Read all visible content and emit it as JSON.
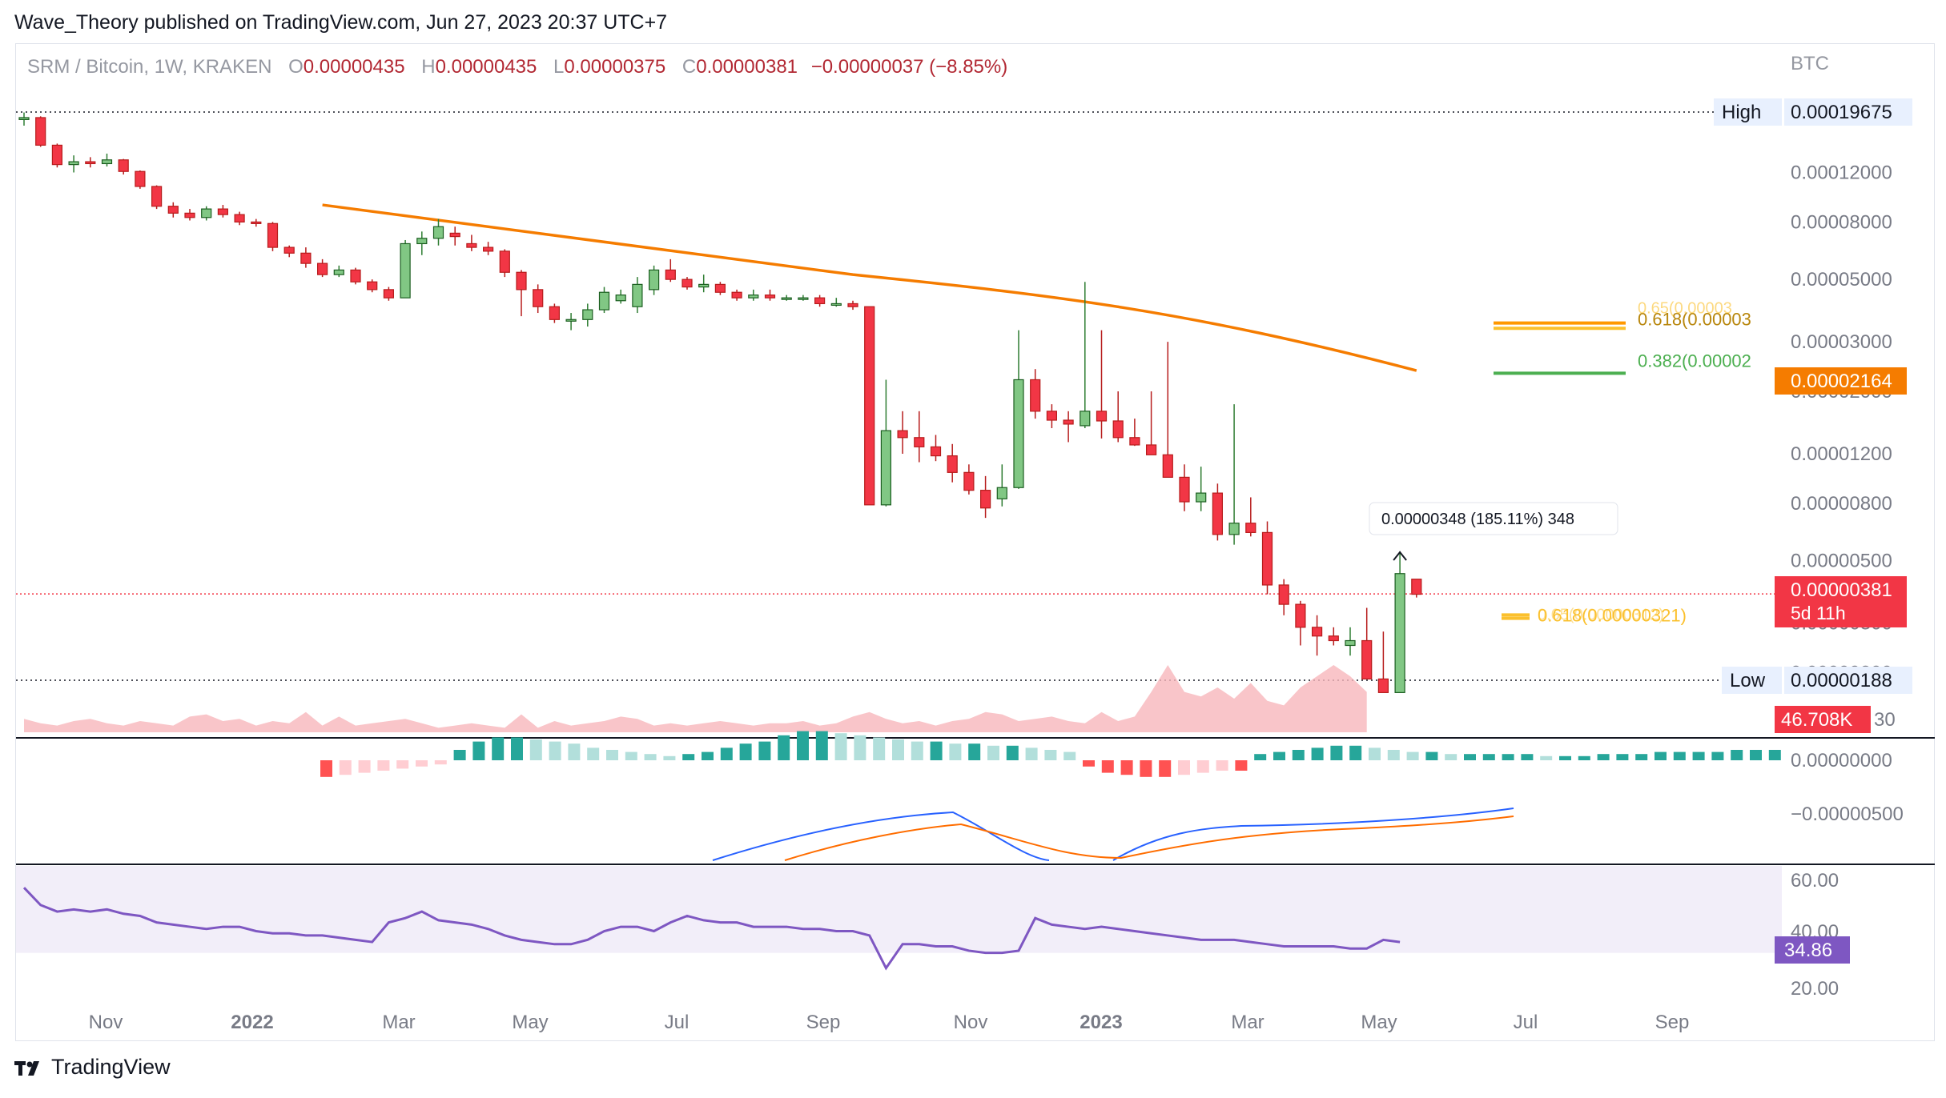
{
  "publisher": "Wave_Theory published on TradingView.com, Jun 27, 2023 20:37 UTC+7",
  "legend": {
    "symbol": "SRM / Bitcoin, 1W, KRAKEN",
    "open_label": "O",
    "open": "0.00000435",
    "high_label": "H",
    "high": "0.00000435",
    "low_label": "L",
    "low": "0.00000375",
    "close_label": "C",
    "close": "0.00000381",
    "change": "−0.00000037 (−8.85%)"
  },
  "currency": "BTC",
  "brand": "TradingView",
  "colors": {
    "up": "#4caf50",
    "up_fill": "#81c784",
    "down": "#f23645",
    "down_fill": "#f23645",
    "ema": "#f57c00",
    "fib_382": "#4caf50",
    "fib_618": "#fbc02d",
    "fib_65": "#ff9800",
    "macd_line": "#2962ff",
    "signal_line": "#ff6d00",
    "hist_up_strong": "#26a69a",
    "hist_up_weak": "#b2dfdb",
    "hist_down_strong": "#ff5252",
    "hist_down_weak": "#ffcdd2",
    "rsi": "#7e57c2",
    "rsi_band": "#ede7f6",
    "volume_up": "#b8dbbc",
    "volume_down": "#f7b7bb"
  },
  "price_axis": {
    "ticks": [
      "0.00012000",
      "0.00008000",
      "0.00005000",
      "0.00003000",
      "0.00002000",
      "0.00001200",
      "0.00000800",
      "0.00000500",
      "0.00000300",
      "0.00000200"
    ],
    "high_label": "High",
    "high_value": "0.00019675",
    "low_label": "Low",
    "low_value": "0.00000188",
    "ema_value": "0.00002164",
    "last_price": "0.00000381",
    "countdown": "5d 11h",
    "volume_value": "46.708K",
    "volume_tick": "30"
  },
  "macd_axis": {
    "ticks": [
      "0.00000000",
      "−0.00000500"
    ]
  },
  "rsi_axis": {
    "ticks": [
      "60.00",
      "40.00",
      "20.00"
    ],
    "value": "34.86"
  },
  "time_axis": {
    "labels": [
      {
        "text": "Nov",
        "bold": false
      },
      {
        "text": "2022",
        "bold": true
      },
      {
        "text": "Mar",
        "bold": false
      },
      {
        "text": "May",
        "bold": false
      },
      {
        "text": "Jul",
        "bold": false
      },
      {
        "text": "Sep",
        "bold": false
      },
      {
        "text": "Nov",
        "bold": false
      },
      {
        "text": "2023",
        "bold": true
      },
      {
        "text": "Mar",
        "bold": false
      },
      {
        "text": "May",
        "bold": false
      },
      {
        "text": "Jul",
        "bold": false
      },
      {
        "text": "Sep",
        "bold": false
      }
    ]
  },
  "annotations": {
    "measure": "0.00000348 (185.11%) 348",
    "fib_382": "0.382(0.00002",
    "fib_618": "0.618(0.00003",
    "fib_65": "0.65(0.00003",
    "fib_low": "0.618(0.00000321)",
    "fib_low2": "0.65(0.00000312)"
  },
  "chart_data": {
    "type": "candlestick",
    "title": "SRM / Bitcoin, 1W, KRAKEN",
    "scale": "log",
    "ylim": [
      1.88e-06,
      0.00019675
    ],
    "xlim": [
      "2021-09-20",
      "2023-10-02"
    ],
    "ohlc": [
      [
        0.000185,
        0.000196,
        0.000176,
        0.000188
      ],
      [
        0.000188,
        0.00019,
        0.000148,
        0.00015
      ],
      [
        0.00015,
        0.000152,
        0.000125,
        0.000128
      ],
      [
        0.000128,
        0.000138,
        0.00012,
        0.000131
      ],
      [
        0.000131,
        0.000136,
        0.000125,
        0.000129
      ],
      [
        0.000129,
        0.00014,
        0.000126,
        0.000133
      ],
      [
        0.000133,
        0.000134,
        0.000118,
        0.000121
      ],
      [
        0.000121,
        0.000122,
        0.000105,
        0.000107
      ],
      [
        0.000107,
        0.000108,
        8.9e-05,
        9.1e-05
      ],
      [
        9.1e-05,
        9.4e-05,
        8.3e-05,
        8.6e-05
      ],
      [
        8.6e-05,
        8.9e-05,
        8.1e-05,
        8.3e-05
      ],
      [
        8.3e-05,
        9.1e-05,
        8.1e-05,
        8.9e-05
      ],
      [
        8.9e-05,
        9.2e-05,
        8.3e-05,
        8.5e-05
      ],
      [
        8.5e-05,
        8.7e-05,
        7.8e-05,
        8e-05
      ],
      [
        8e-05,
        8.2e-05,
        7.7e-05,
        7.9e-05
      ],
      [
        7.9e-05,
        8e-05,
        6.3e-05,
        6.5e-05
      ],
      [
        6.5e-05,
        6.6e-05,
        6e-05,
        6.2e-05
      ],
      [
        6.2e-05,
        6.5e-05,
        5.5e-05,
        5.7e-05
      ],
      [
        5.7e-05,
        5.9e-05,
        5.1e-05,
        5.2e-05
      ],
      [
        5.2e-05,
        5.6e-05,
        5.1e-05,
        5.4e-05
      ],
      [
        5.4e-05,
        5.5e-05,
        4.8e-05,
        4.9e-05
      ],
      [
        4.9e-05,
        5e-05,
        4.5e-05,
        4.6e-05
      ],
      [
        4.6e-05,
        4.7e-05,
        4.2e-05,
        4.3e-05
      ],
      [
        4.3e-05,
        6.9e-05,
        4.3e-05,
        6.7e-05
      ],
      [
        6.7e-05,
        7.4e-05,
        6.1e-05,
        7e-05
      ],
      [
        7e-05,
        8.2e-05,
        6.6e-05,
        7.7e-05
      ],
      [
        7.3e-05,
        7.7e-05,
        6.6e-05,
        7.1e-05
      ],
      [
        6.7e-05,
        7.2e-05,
        6.3e-05,
        6.5e-05
      ],
      [
        6.5e-05,
        6.8e-05,
        6.1e-05,
        6.3e-05
      ],
      [
        6.3e-05,
        6.4e-05,
        5.1e-05,
        5.3e-05
      ],
      [
        5.3e-05,
        5.4e-05,
        3.7e-05,
        4.6e-05
      ],
      [
        4.6e-05,
        4.8e-05,
        3.8e-05,
        4e-05
      ],
      [
        4e-05,
        4.1e-05,
        3.5e-05,
        3.6e-05
      ],
      [
        3.6e-05,
        3.8e-05,
        3.3e-05,
        3.6e-05
      ],
      [
        3.6e-05,
        4.1e-05,
        3.4e-05,
        3.9e-05
      ],
      [
        3.9e-05,
        4.7e-05,
        3.8e-05,
        4.5e-05
      ],
      [
        4.2e-05,
        4.6e-05,
        4.1e-05,
        4.4e-05
      ],
      [
        4e-05,
        5.1e-05,
        3.8e-05,
        4.8e-05
      ],
      [
        4.6e-05,
        5.6e-05,
        4.4e-05,
        5.4e-05
      ],
      [
        5.4e-05,
        5.9e-05,
        4.9e-05,
        5e-05
      ],
      [
        5e-05,
        5.1e-05,
        4.6e-05,
        4.7e-05
      ],
      [
        4.7e-05,
        5.2e-05,
        4.5e-05,
        4.8e-05
      ],
      [
        4.8e-05,
        4.9e-05,
        4.4e-05,
        4.5e-05
      ],
      [
        4.5e-05,
        4.6e-05,
        4.2e-05,
        4.3e-05
      ],
      [
        4.3e-05,
        4.6e-05,
        4.2e-05,
        4.4e-05
      ],
      [
        4.4e-05,
        4.6e-05,
        4.2e-05,
        4.3e-05
      ],
      [
        4.3e-05,
        4.4e-05,
        4.2e-05,
        4.3e-05
      ],
      [
        4.3e-05,
        4.4e-05,
        4.2e-05,
        4.3e-05
      ],
      [
        4.3e-05,
        4.4e-05,
        4e-05,
        4.1e-05
      ],
      [
        4.1e-05,
        4.3e-05,
        4e-05,
        4.1e-05
      ],
      [
        4.1e-05,
        4.2e-05,
        3.9e-05,
        4e-05
      ],
      [
        4e-05,
        4e-05,
        7.9e-06,
        7.9e-06
      ],
      [
        7.9e-06,
        2.2e-05,
        7.8e-06,
        1.45e-05
      ],
      [
        1.45e-05,
        1.7e-05,
        1.2e-05,
        1.37e-05
      ],
      [
        1.37e-05,
        1.7e-05,
        1.12e-05,
        1.27e-05
      ],
      [
        1.27e-05,
        1.4e-05,
        1.13e-05,
        1.18e-05
      ],
      [
        1.18e-05,
        1.3e-05,
        9.5e-06,
        1.03e-05
      ],
      [
        1.03e-05,
        1.1e-05,
        8.6e-06,
        8.9e-06
      ],
      [
        8.9e-06,
        1e-05,
        7.1e-06,
        7.7e-06
      ],
      [
        8.3e-06,
        1.1e-05,
        7.8e-06,
        9.1e-06
      ],
      [
        9.1e-06,
        3.3e-05,
        9e-06,
        2.2e-05
      ],
      [
        2.2e-05,
        2.4e-05,
        1.6e-05,
        1.7e-05
      ],
      [
        1.7e-05,
        1.8e-05,
        1.48e-05,
        1.58e-05
      ],
      [
        1.58e-05,
        1.7e-05,
        1.32e-05,
        1.53e-05
      ],
      [
        1.51e-05,
        4.9e-05,
        1.48e-05,
        1.7e-05
      ],
      [
        1.7e-05,
        3.3e-05,
        1.36e-05,
        1.57e-05
      ],
      [
        1.57e-05,
        2e-05,
        1.32e-05,
        1.37e-05
      ],
      [
        1.37e-05,
        1.6e-05,
        1.28e-05,
        1.29e-05
      ],
      [
        1.29e-05,
        2e-05,
        1.2e-05,
        1.19e-05
      ],
      [
        1.19e-05,
        3e-05,
        1.03e-05,
        9.9e-06
      ],
      [
        9.9e-06,
        1.1e-05,
        7.5e-06,
        8.1e-06
      ],
      [
        8.1e-06,
        1.08e-05,
        7.5e-06,
        8.7e-06
      ],
      [
        8.7e-06,
        9.4e-06,
        5.9e-06,
        6.2e-06
      ],
      [
        6.2e-06,
        1.8e-05,
        5.7e-06,
        6.8e-06
      ],
      [
        6.8e-06,
        8.4e-06,
        6.1e-06,
        6.3e-06
      ],
      [
        6.3e-06,
        6.9e-06,
        3.8e-06,
        4.1e-06
      ],
      [
        4.1e-06,
        4.3e-06,
        3.2e-06,
        3.5e-06
      ],
      [
        3.5e-06,
        3.6e-06,
        2.5e-06,
        2.9e-06
      ],
      [
        2.9e-06,
        3.2e-06,
        2.3e-06,
        2.7e-06
      ],
      [
        2.7e-06,
        2.9e-06,
        2.5e-06,
        2.6e-06
      ],
      [
        2.5e-06,
        2.9e-06,
        2.3e-06,
        2.6e-06
      ],
      [
        2.6e-06,
        3.4e-06,
        2e-06,
        1.9e-06
      ],
      [
        1.9e-06,
        2.8e-06,
        1.9e-06,
        1.7e-06
      ],
      [
        1.7e-06,
        5.4e-06,
        1.7e-06,
        4.5e-06
      ],
      [
        4.3e-06,
        4.3e-06,
        3.7e-06,
        3.8e-06
      ]
    ],
    "ema": {
      "x_start": 18,
      "x_end": 84,
      "y_start": 9.2e-05,
      "y_mid": 4.1e-05,
      "y_end": 2.37e-05
    },
    "fib_lines": [
      {
        "label": "0.382",
        "value": 2.32e-05
      },
      {
        "label": "0.618",
        "value": 3.35e-05
      },
      {
        "label": "0.65",
        "value": 3.5e-05
      },
      {
        "label": "0.618",
        "value": 3.21e-06
      },
      {
        "label": "0.65",
        "value": 3.12e-06
      }
    ],
    "volume": [
      6,
      4,
      3,
      5,
      6,
      4,
      3,
      5,
      4,
      3,
      7,
      8,
      5,
      6,
      3,
      5,
      4,
      9,
      3,
      7,
      3,
      4,
      5,
      6,
      4,
      2,
      3,
      4,
      3,
      2,
      8,
      2,
      5,
      3,
      4,
      5,
      7,
      6,
      3,
      4,
      3,
      4,
      5,
      4,
      3,
      4,
      4,
      5,
      3,
      4,
      7,
      9,
      6,
      4,
      5,
      3,
      5,
      6,
      9,
      8,
      5,
      6,
      7,
      5,
      4,
      9,
      5,
      7,
      18,
      30,
      18,
      16,
      20,
      15,
      22,
      14,
      12,
      20,
      25,
      30,
      25,
      18
    ],
    "macd_hist": [
      -8,
      -7,
      -6,
      -5,
      -4,
      -3,
      -2,
      5,
      9,
      11,
      11,
      10,
      9,
      8,
      6,
      5,
      4,
      3,
      2,
      3,
      4,
      6,
      8,
      9,
      12,
      14,
      14,
      13,
      12,
      11,
      10,
      9,
      9,
      8,
      8,
      7,
      7,
      6,
      5,
      4,
      -3,
      -6,
      -7,
      -8,
      -8,
      -7,
      -6,
      -5,
      -5,
      3,
      4,
      5,
      6,
      7,
      7,
      6,
      5,
      4,
      4,
      3,
      3,
      3,
      3,
      3,
      2,
      2,
      2,
      3,
      3,
      3,
      4,
      4,
      4,
      4,
      5,
      5,
      5
    ],
    "rsi": [
      60,
      52,
      49,
      50,
      49,
      50,
      48,
      47,
      44,
      43,
      42,
      41,
      42,
      42,
      40,
      39,
      39,
      38,
      38,
      37,
      36,
      35,
      44,
      46,
      49,
      45,
      44,
      43,
      41,
      38,
      36,
      35,
      34,
      34,
      36,
      40,
      42,
      42,
      40,
      44,
      47,
      45,
      44,
      44,
      42,
      42,
      42,
      41,
      41,
      40,
      40,
      38,
      23,
      34,
      34,
      33,
      33,
      31,
      30,
      30,
      31,
      46,
      43,
      42,
      41,
      42,
      41,
      40,
      39,
      38,
      37,
      36,
      36,
      36,
      35,
      34,
      33,
      33,
      33,
      33,
      32,
      32,
      36,
      35
    ]
  }
}
